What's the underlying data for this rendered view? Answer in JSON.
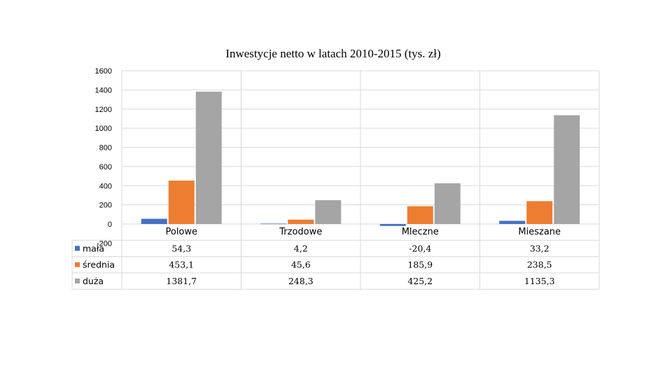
{
  "chart_data": {
    "type": "bar",
    "title": "Inwestycje netto w latach 2010-2015 (tys. zł)",
    "categories": [
      "Polowe",
      "Trzodowe",
      "Mleczne",
      "Mieszane"
    ],
    "series": [
      {
        "name": "mała",
        "color": "#4472c4",
        "values": [
          54.3,
          4.2,
          -20.4,
          33.2
        ],
        "labels": [
          "54,3",
          "4,2",
          "-20,4",
          "33,2"
        ]
      },
      {
        "name": "średnia",
        "color": "#ed7d31",
        "values": [
          453.1,
          45.6,
          185.9,
          238.5
        ],
        "labels": [
          "453,1",
          "45,6",
          "185,9",
          "238,5"
        ]
      },
      {
        "name": "duża",
        "color": "#a5a5a5",
        "values": [
          1381.7,
          248.3,
          425.2,
          1135.3
        ],
        "labels": [
          "1381,7",
          "248,3",
          "425,2",
          "1135,3"
        ]
      }
    ],
    "ylim": [
      -200,
      1600
    ],
    "yticks": [
      "-200",
      "0",
      "200",
      "400",
      "600",
      "800",
      "1000",
      "1200",
      "1400",
      "1600"
    ],
    "grid": true,
    "legend": "data-table"
  }
}
